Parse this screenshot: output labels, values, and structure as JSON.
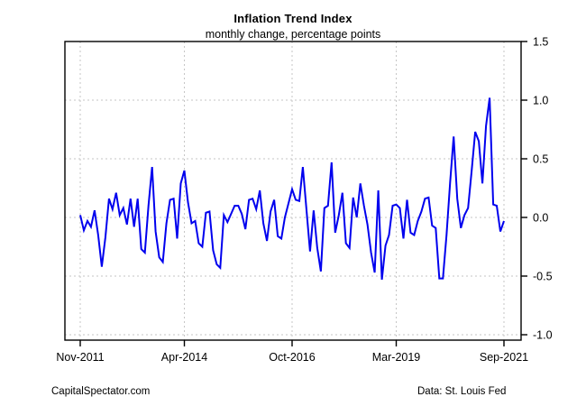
{
  "header": {
    "title": "Inflation Trend Index",
    "subtitle": "monthly change, percentage points"
  },
  "footer": {
    "left": "CapitalSpectator.com",
    "right": "Data: St. Louis Fed"
  },
  "chart_data": {
    "type": "line",
    "title": "Inflation Trend Index",
    "subtitle": "monthly change, percentage points",
    "series_name": "inflation-trend-index-monthly-change",
    "start": "Nov-2011",
    "end": "Sep-2021",
    "frequency": "monthly",
    "values": [
      0.02,
      -0.11,
      -0.03,
      -0.08,
      0.06,
      -0.15,
      -0.42,
      -0.17,
      0.16,
      0.07,
      0.21,
      0.02,
      0.08,
      -0.06,
      0.16,
      -0.08,
      0.16,
      -0.27,
      -0.3,
      0.1,
      0.43,
      -0.12,
      -0.34,
      -0.38,
      -0.05,
      0.15,
      0.16,
      -0.18,
      0.29,
      0.4,
      0.13,
      -0.05,
      -0.03,
      -0.22,
      -0.25,
      0.04,
      0.05,
      -0.28,
      -0.4,
      -0.43,
      0.02,
      -0.04,
      0.03,
      0.1,
      0.1,
      0.03,
      -0.1,
      0.15,
      0.16,
      0.07,
      0.23,
      -0.05,
      -0.2,
      0.05,
      0.15,
      -0.16,
      -0.18,
      0.0,
      0.12,
      0.24,
      0.15,
      0.14,
      0.43,
      0.07,
      -0.29,
      0.06,
      -0.26,
      -0.46,
      0.08,
      0.1,
      0.47,
      -0.13,
      0.02,
      0.21,
      -0.22,
      -0.26,
      0.17,
      0.0,
      0.29,
      0.1,
      -0.06,
      -0.3,
      -0.47,
      0.23,
      -0.53,
      -0.24,
      -0.15,
      0.1,
      0.11,
      0.08,
      -0.18,
      0.15,
      -0.13,
      -0.15,
      -0.03,
      0.05,
      0.16,
      0.17,
      -0.07,
      -0.09,
      -0.52,
      -0.52,
      -0.15,
      0.3,
      0.69,
      0.16,
      -0.09,
      0.02,
      0.08,
      0.4,
      0.73,
      0.65,
      0.29,
      0.78,
      1.02,
      0.11,
      0.1,
      -0.12,
      -0.03
    ],
    "x_tick_labels": [
      "Nov-2011",
      "Apr-2014",
      "Oct-2016",
      "Mar-2019",
      "Sep-2021"
    ],
    "x_tick_indices": [
      0,
      29,
      59,
      88,
      118
    ],
    "y_tick_labels": [
      "1.5",
      "1.0",
      "0.5",
      "0.0",
      "-0.5",
      "-1.0"
    ],
    "y_ticks": [
      1.5,
      1.0,
      0.5,
      0.0,
      -0.5,
      -1.0
    ],
    "ylim": [
      -1.0,
      1.5
    ],
    "grid": true,
    "legend_position": "none",
    "line_color": "#0000EE",
    "grid_color": "#C6C6C6",
    "axis_color": "#000000",
    "background_color": "#FFFFFF"
  }
}
